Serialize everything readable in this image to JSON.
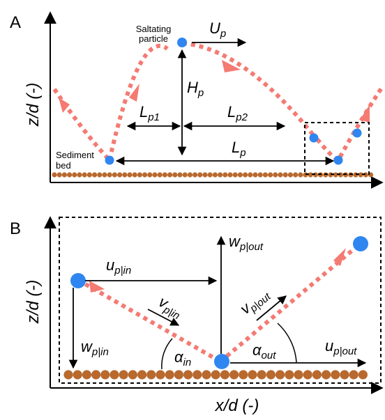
{
  "panel_a": {
    "label": "A",
    "y_axis_label": "z/d (-)",
    "particle_label_line1": "Saltating",
    "particle_label_line2": "particle",
    "bed_label_line1": "Sediment",
    "bed_label_line2": "bed",
    "velocity_main": "U",
    "velocity_sub": "p",
    "height_main": "H",
    "height_sub": "p",
    "length1_main": "L",
    "length1_sub": "p1",
    "length2_main": "L",
    "length2_sub": "p2",
    "length_main": "L",
    "length_sub": "p"
  },
  "panel_b": {
    "label": "B",
    "y_axis_label": "z/d (-)",
    "x_axis_label": "x/d (-)",
    "u_in_main": "u",
    "u_in_sub": "p|in",
    "v_in_main": "v",
    "v_in_sub": "p|in",
    "w_in_main": "w",
    "w_in_sub": "p|in",
    "alpha_in_main": "α",
    "alpha_in_sub": "in",
    "w_out_main": "w",
    "w_out_sub": "p|out",
    "v_out_main": "v",
    "v_out_sub": "p|out",
    "alpha_out_main": "α",
    "alpha_out_sub": "out",
    "u_out_main": "u",
    "u_out_sub": "p|out"
  },
  "colors": {
    "particle": "#2f86f0",
    "trajectory": "#f47a72",
    "bed": "#b8692e"
  }
}
